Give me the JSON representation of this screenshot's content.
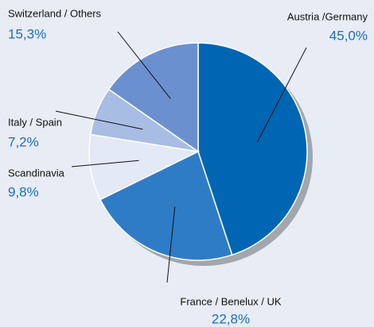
{
  "chart_data": {
    "type": "pie",
    "categories": [
      "Austria /Germany",
      "France / Benelux / UK",
      "Scandinavia",
      "Italy / Spain",
      "Switzerland / Others"
    ],
    "values": [
      45.0,
      22.8,
      9.8,
      7.2,
      15.3
    ],
    "value_labels": [
      "45,0%",
      "22,8%",
      "9,8%",
      "7,2%",
      "15,3%"
    ],
    "colors": [
      "#0066b3",
      "#2f7cc6",
      "#e3e9f5",
      "#a8bde4",
      "#6b90cf"
    ]
  }
}
